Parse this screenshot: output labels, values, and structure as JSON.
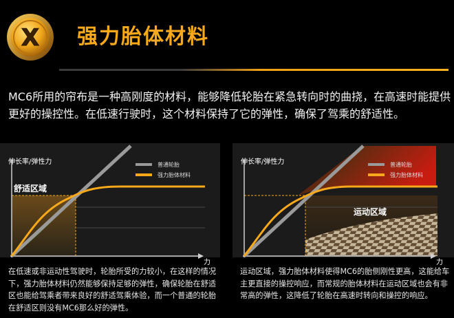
{
  "header": {
    "badge_letter": "X",
    "title": "强力胎体材料"
  },
  "intro": "MC6所用的帘布是一种高刚度的材料，能够降低轮胎在紧急转向时的曲挠，在高速时能提供更好的操控性。在低速行驶时，这个材料保持了它的弹性，确保了驾乘的舒适性。",
  "chart_data": [
    {
      "type": "line",
      "ylabel": "伸长率/弹性力",
      "xlabel": "力",
      "zone_label": "舒适区域",
      "series": [
        {
          "name": "普通轮胎",
          "color": "#9a9a9a",
          "x": [
            0,
            1
          ],
          "y": [
            0,
            1
          ]
        },
        {
          "name": "强力胎体材料",
          "color": "#f7a81b",
          "x": [
            0,
            0.1,
            0.2,
            0.3,
            0.4,
            0.5,
            0.6,
            0.7,
            0.8,
            1
          ],
          "y": [
            0,
            0.24,
            0.4,
            0.5,
            0.55,
            0.57,
            0.575,
            0.575,
            0.575,
            0.575
          ]
        }
      ]
    },
    {
      "type": "line",
      "ylabel": "伸长率/弹性力",
      "xlabel": "力",
      "zone_label": "运动区域",
      "series": [
        {
          "name": "普通轮胎",
          "color": "#9a9a9a",
          "x": [
            0,
            1
          ],
          "y": [
            0,
            1
          ]
        },
        {
          "name": "强力胎体材料",
          "color": "#f7a81b",
          "x": [
            0,
            0.1,
            0.2,
            0.3,
            0.4,
            0.5,
            0.6,
            0.7,
            0.8,
            1
          ],
          "y": [
            0,
            0.24,
            0.4,
            0.5,
            0.55,
            0.57,
            0.575,
            0.575,
            0.575,
            0.575
          ]
        }
      ]
    }
  ],
  "captions": {
    "left": "在低速或非运动性驾驶时，轮胎所受的力较小，在这样的情况下，强力胎体材料仍然能够保持足够的弹性，确保轮胎在舒适区也能给驾乘者带来良好的舒适驾乘体验，而一个普通的轮胎在舒适区则没有MC6那么好的弹性。",
    "right": "运动区域，强力胎体材料使得MC6的胎侧刚性更高，这能给车主更直接的操控响应，而常规的胎体材料在运动区域也会有非常高的弹性，这降低了轮胎在高速时转向和操控的响应。"
  },
  "colors": {
    "accent": "#f7a81b",
    "standard_line": "#9a9a9a",
    "background": "#000000"
  }
}
